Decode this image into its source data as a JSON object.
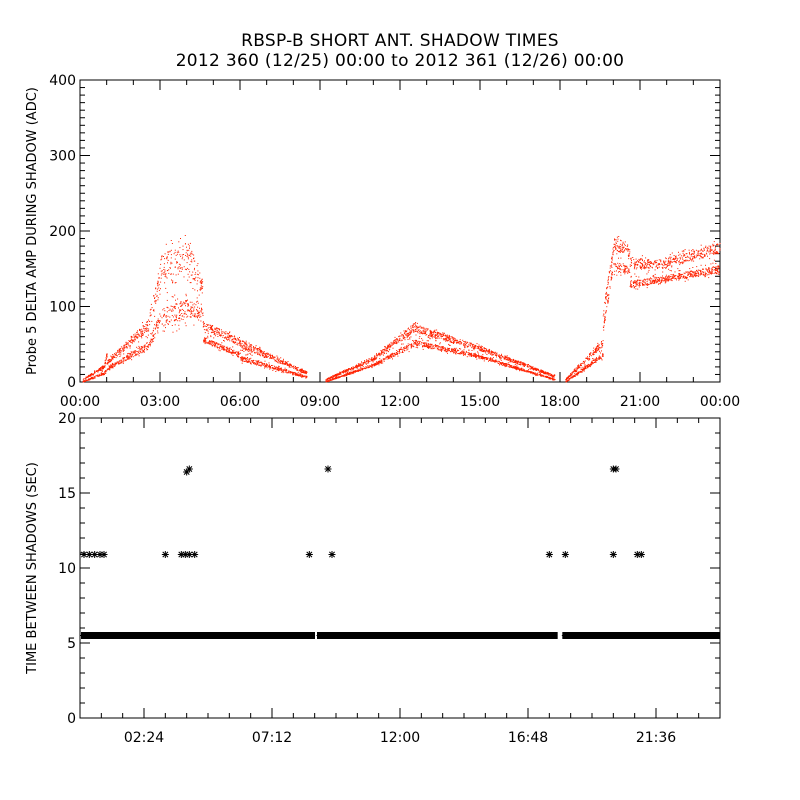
{
  "header": {
    "title_line1": "RBSP-B SHORT ANT. SHADOW TIMES",
    "title_line2": "2012 360 (12/25) 00:00 to 2012 361 (12/26) 00:00"
  },
  "colors": {
    "amp_series": "#ff2200",
    "shadow_series": "#000000",
    "axes": "#000000"
  },
  "chart_data": [
    {
      "type": "scatter",
      "ylabel": "Probe 5 DELTA AMP DURING SHADOW (ADC)",
      "xlabel": "",
      "xlim_hours": [
        0,
        24
      ],
      "ylim": [
        0,
        400
      ],
      "x_tick_labels": [
        "00:00",
        "03:00",
        "06:00",
        "09:00",
        "12:00",
        "15:00",
        "18:00",
        "21:00",
        "00:00"
      ],
      "x_tick_hours": [
        0,
        3,
        6,
        9,
        12,
        15,
        18,
        21,
        24
      ],
      "y_tick_labels": [
        "0",
        "100",
        "200",
        "300",
        "400"
      ],
      "y_ticks": [
        0,
        100,
        200,
        300,
        400
      ],
      "series": [
        {
          "color": "#ff2200",
          "band_envelopes": [
            {
              "from_h": 0.1,
              "to_h": 1.0,
              "low": [
                [
                  0.1,
                  0
                ],
                [
                  1.0,
                  10
                ]
              ],
              "high": [
                [
                  0.1,
                  5
                ],
                [
                  0.9,
                  25
                ],
                [
                  1.0,
                  45
                ]
              ]
            },
            {
              "from_h": 1.0,
              "to_h": 2.6,
              "low": [
                [
                  1.0,
                  15
                ],
                [
                  2.6,
                  40
                ]
              ],
              "high": [
                [
                  1.0,
                  30
                ],
                [
                  2.6,
                  90
                ]
              ]
            },
            {
              "from_h": 2.6,
              "to_h": 3.0,
              "low": [
                [
                  2.6,
                  40
                ],
                [
                  3.0,
                  70
                ]
              ],
              "high": [
                [
                  2.6,
                  100
                ],
                [
                  3.0,
                  160
                ]
              ]
            },
            {
              "from_h": 3.0,
              "to_h": 4.6,
              "low": [
                [
                  3.0,
                  60
                ],
                [
                  4.6,
                  80
                ]
              ],
              "high": [
                [
                  3.0,
                  180
                ],
                [
                  4.0,
                  200
                ],
                [
                  4.6,
                  140
                ]
              ]
            },
            {
              "from_h": 4.6,
              "to_h": 6.0,
              "low": [
                [
                  4.6,
                  50
                ],
                [
                  6.0,
                  30
                ]
              ],
              "high": [
                [
                  4.6,
                  85
                ],
                [
                  6.0,
                  60
                ]
              ]
            },
            {
              "from_h": 6.0,
              "to_h": 8.5,
              "low": [
                [
                  6.0,
                  25
                ],
                [
                  8.5,
                  5
                ]
              ],
              "high": [
                [
                  6.0,
                  60
                ],
                [
                  8.5,
                  15
                ]
              ]
            },
            {
              "from_h": 9.2,
              "to_h": 11.0,
              "low": [
                [
                  9.2,
                  0
                ],
                [
                  11.0,
                  20
                ]
              ],
              "high": [
                [
                  9.2,
                  5
                ],
                [
                  11.0,
                  35
                ]
              ]
            },
            {
              "from_h": 11.0,
              "to_h": 12.6,
              "low": [
                [
                  11.0,
                  20
                ],
                [
                  12.6,
                  45
                ]
              ],
              "high": [
                [
                  11.0,
                  35
                ],
                [
                  12.6,
                  85
                ]
              ]
            },
            {
              "from_h": 12.6,
              "to_h": 15.0,
              "low": [
                [
                  12.6,
                  45
                ],
                [
                  15.0,
                  30
                ]
              ],
              "high": [
                [
                  12.6,
                  80
                ],
                [
                  15.0,
                  50
                ]
              ]
            },
            {
              "from_h": 15.0,
              "to_h": 17.8,
              "low": [
                [
                  15.0,
                  30
                ],
                [
                  17.8,
                  2
                ]
              ],
              "high": [
                [
                  15.0,
                  50
                ],
                [
                  17.8,
                  10
                ]
              ]
            },
            {
              "from_h": 18.2,
              "to_h": 19.6,
              "low": [
                [
                  18.2,
                  0
                ],
                [
                  19.6,
                  30
                ]
              ],
              "high": [
                [
                  18.2,
                  5
                ],
                [
                  19.6,
                  60
                ]
              ]
            },
            {
              "from_h": 19.6,
              "to_h": 20.0,
              "low": [
                [
                  19.6,
                  60
                ],
                [
                  20.0,
                  150
                ]
              ],
              "high": [
                [
                  19.6,
                  100
                ],
                [
                  20.0,
                  190
                ]
              ]
            },
            {
              "from_h": 20.0,
              "to_h": 20.6,
              "low": [
                [
                  20.0,
                  140
                ],
                [
                  20.6,
                  140
                ]
              ],
              "high": [
                [
                  20.0,
                  200
                ],
                [
                  20.6,
                  185
                ]
              ]
            },
            {
              "from_h": 20.6,
              "to_h": 22.0,
              "low": [
                [
                  20.6,
                  120
                ],
                [
                  22.0,
                  130
                ]
              ],
              "high": [
                [
                  20.6,
                  170
                ],
                [
                  22.0,
                  165
                ]
              ]
            },
            {
              "from_h": 22.0,
              "to_h": 24.0,
              "low": [
                [
                  22.0,
                  130
                ],
                [
                  24.0,
                  140
                ]
              ],
              "high": [
                [
                  22.0,
                  170
                ],
                [
                  24.0,
                  190
                ]
              ]
            }
          ]
        }
      ]
    },
    {
      "type": "scatter",
      "ylabel": "TIME BETWEEN SHADOWS (SEC)",
      "xlabel": "",
      "xlim_hours": [
        0,
        24
      ],
      "ylim": [
        0,
        20
      ],
      "x_tick_labels": [
        "02:24",
        "07:12",
        "12:00",
        "16:48",
        "21:36"
      ],
      "x_tick_hours": [
        2.4,
        7.2,
        12.0,
        16.8,
        21.6
      ],
      "y_tick_labels": [
        "0",
        "5",
        "10",
        "15",
        "20"
      ],
      "y_ticks": [
        0,
        5,
        10,
        15,
        20
      ],
      "series": [
        {
          "color": "#000000",
          "baseline_value": 5.5,
          "baseline_ranges_hours": [
            [
              0.15,
              8.7
            ],
            [
              9.0,
              17.8
            ],
            [
              18.2,
              23.9
            ]
          ],
          "points": [
            [
              0.15,
              10.9
            ],
            [
              0.35,
              10.9
            ],
            [
              0.55,
              10.9
            ],
            [
              0.75,
              10.9
            ],
            [
              0.9,
              10.9
            ],
            [
              3.2,
              10.9
            ],
            [
              3.8,
              10.9
            ],
            [
              3.95,
              10.9
            ],
            [
              4.1,
              10.9
            ],
            [
              4.3,
              10.9
            ],
            [
              4.0,
              16.4
            ],
            [
              4.1,
              16.6
            ],
            [
              8.6,
              10.9
            ],
            [
              9.3,
              16.6
            ],
            [
              9.45,
              10.9
            ],
            [
              17.6,
              10.9
            ],
            [
              18.2,
              10.9
            ],
            [
              20.0,
              16.6
            ],
            [
              20.1,
              16.6
            ],
            [
              20.0,
              10.9
            ],
            [
              20.9,
              10.9
            ],
            [
              21.05,
              10.9
            ]
          ]
        }
      ]
    }
  ]
}
